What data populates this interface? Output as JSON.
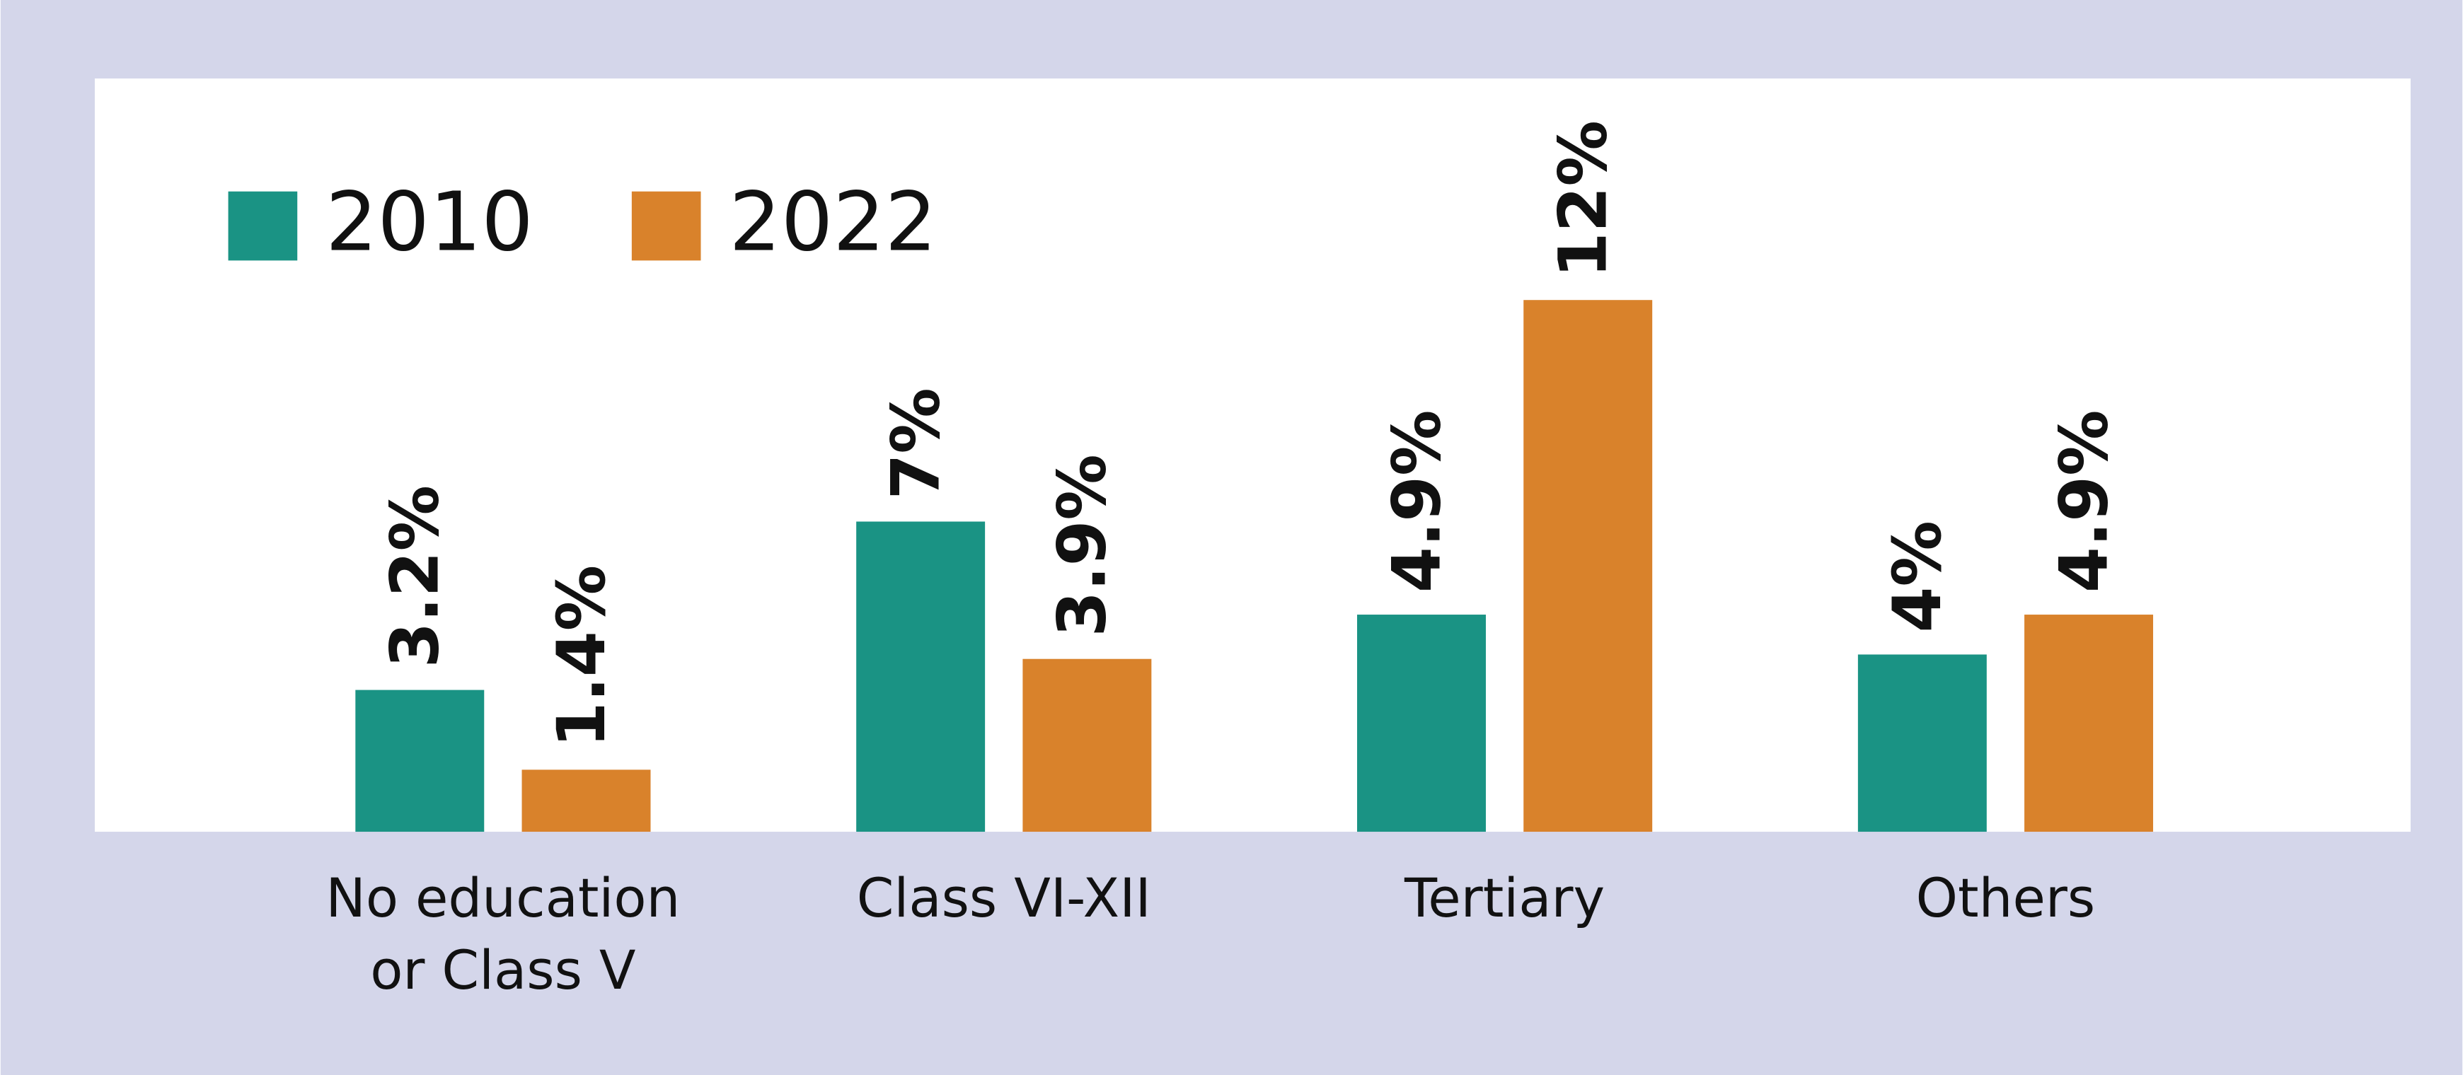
{
  "chart_data": {
    "type": "bar",
    "categories": [
      "No education or Class V",
      "Class VI-XII",
      "Tertiary",
      "Others"
    ],
    "series": [
      {
        "name": "2010",
        "color": "#1a9384",
        "values": [
          3.2,
          7,
          4.9,
          4
        ],
        "value_labels": [
          "3.2%",
          "7%",
          "4.9%",
          "4%"
        ]
      },
      {
        "name": "2022",
        "color": "#d9822b",
        "values": [
          1.4,
          3.9,
          12,
          4.9
        ],
        "value_labels": [
          "1.4%",
          "3.9%",
          "12%",
          "4.9%"
        ]
      }
    ],
    "ylim": [
      0,
      17
    ]
  }
}
